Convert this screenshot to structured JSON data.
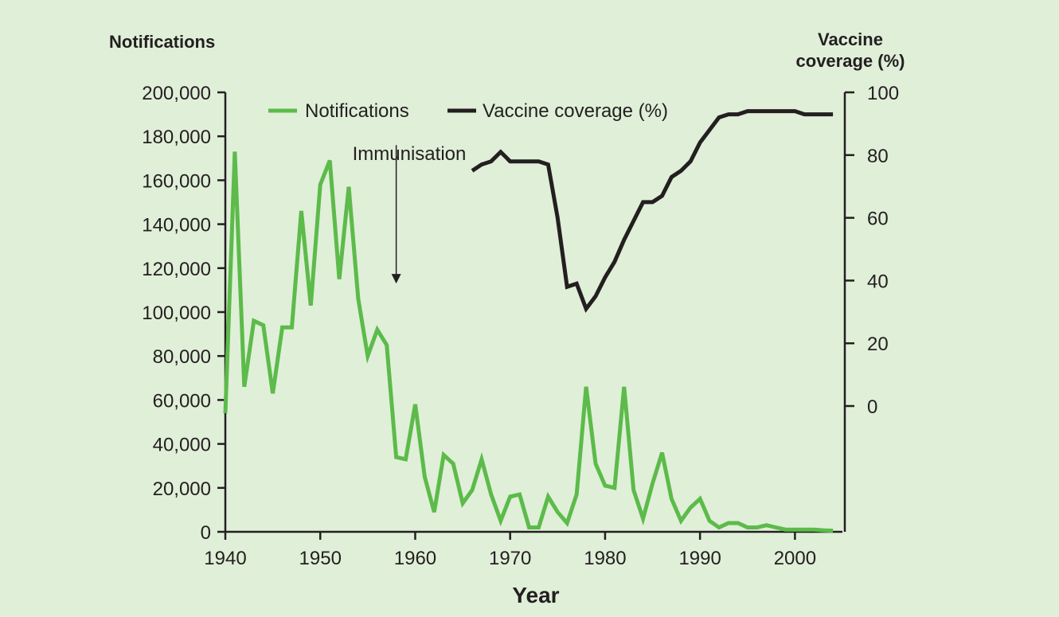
{
  "chart_data": {
    "type": "line",
    "xlabel": "Year",
    "y_left_label": "Notifications",
    "y_right_label_line1": "Vaccine",
    "y_right_label_line2": "coverage (%)",
    "x_range": [
      1940,
      2005
    ],
    "x_ticks": [
      1940,
      1950,
      1960,
      1970,
      1980,
      1990,
      2000
    ],
    "x_tick_labels": [
      "1940",
      "1950",
      "1960",
      "1970",
      "1980",
      "1990",
      "2000"
    ],
    "y_left_range": [
      0,
      200000
    ],
    "y_left_ticks": [
      0,
      20000,
      40000,
      60000,
      80000,
      100000,
      120000,
      140000,
      160000,
      180000,
      200000
    ],
    "y_left_tick_labels": [
      "0",
      "20,000",
      "40,000",
      "60,000",
      "80,000",
      "100,000",
      "120,000",
      "140,000",
      "160,000",
      "180,000",
      "200,000"
    ],
    "y_right_range": [
      0,
      100
    ],
    "y_right_ticks": [
      0,
      20,
      40,
      60,
      80,
      100
    ],
    "y_right_tick_labels": [
      "0",
      "20",
      "40",
      "60",
      "80",
      "100"
    ],
    "legend_position": "top",
    "grid": false,
    "annotation": {
      "text": "Immunisation",
      "x": 1958,
      "arrow_from_y": 176000,
      "arrow_to_y": 113000
    },
    "series": [
      {
        "name": "Notifications",
        "axis": "left",
        "color": "#5cbb4a",
        "x": [
          1940,
          1941,
          1942,
          1943,
          1944,
          1945,
          1946,
          1947,
          1948,
          1949,
          1950,
          1951,
          1952,
          1953,
          1954,
          1955,
          1956,
          1957,
          1958,
          1959,
          1960,
          1961,
          1962,
          1963,
          1964,
          1965,
          1966,
          1967,
          1968,
          1969,
          1970,
          1971,
          1972,
          1973,
          1974,
          1975,
          1976,
          1977,
          1978,
          1979,
          1980,
          1981,
          1982,
          1983,
          1984,
          1985,
          1986,
          1987,
          1988,
          1989,
          1990,
          1991,
          1992,
          1993,
          1994,
          1995,
          1996,
          1997,
          1998,
          1999,
          2000,
          2001,
          2002,
          2003,
          2004
        ],
        "values": [
          54000,
          173000,
          66000,
          96000,
          94000,
          63000,
          93000,
          93000,
          146000,
          103000,
          158000,
          169000,
          115000,
          157000,
          106000,
          80000,
          92000,
          85000,
          34000,
          33000,
          58000,
          25000,
          9000,
          35000,
          31000,
          13000,
          19000,
          33000,
          17000,
          5000,
          16000,
          17000,
          2000,
          2000,
          16000,
          9000,
          4000,
          17000,
          66000,
          31000,
          21000,
          20000,
          66000,
          19000,
          6000,
          22000,
          36000,
          15000,
          5000,
          11000,
          15000,
          5000,
          2000,
          4000,
          4000,
          2000,
          2000,
          3000,
          2000,
          1000,
          1000,
          1000,
          1000,
          700,
          500
        ]
      },
      {
        "name": "Vaccine coverage (%)",
        "axis": "right",
        "color": "#231f20",
        "x": [
          1966,
          1967,
          1968,
          1969,
          1970,
          1971,
          1972,
          1973,
          1974,
          1975,
          1976,
          1977,
          1978,
          1979,
          1980,
          1981,
          1982,
          1983,
          1984,
          1985,
          1986,
          1987,
          1988,
          1989,
          1990,
          1991,
          1992,
          1993,
          1994,
          1995,
          1996,
          1997,
          1998,
          1999,
          2000,
          2001,
          2002,
          2003,
          2004
        ],
        "values": [
          75,
          77,
          78,
          81,
          78,
          78,
          78,
          78,
          77,
          60,
          38,
          39,
          31,
          35,
          41,
          46,
          53,
          59,
          65,
          65,
          67,
          73,
          75,
          78,
          84,
          88,
          92,
          93,
          93,
          94,
          94,
          94,
          94,
          94,
          94,
          93,
          93,
          93,
          93
        ]
      }
    ]
  }
}
